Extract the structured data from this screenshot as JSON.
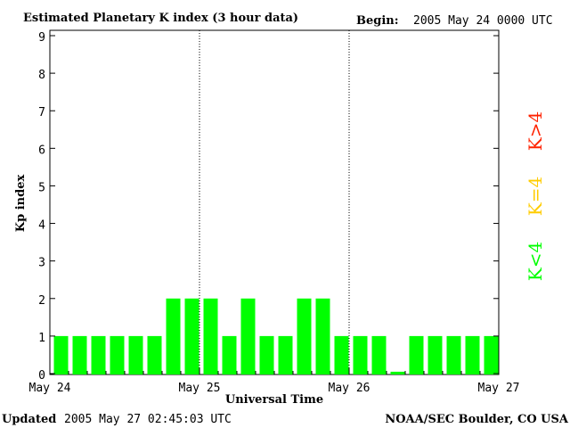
{
  "header": {
    "title": "Estimated Planetary K index (3 hour data)",
    "begin_label": "Begin:",
    "begin_value": "2005 May 24 0000 UTC"
  },
  "footer": {
    "updated_label": "Updated",
    "updated_value": "2005 May 27 02:45:03 UTC",
    "source": "NOAA/SEC Boulder, CO USA"
  },
  "legend": {
    "high": "K>4",
    "equal": "K=4",
    "low": "K<4"
  },
  "colors": {
    "low": "#00ff00",
    "equal": "#ffcc00",
    "high": "#ff2200",
    "axis": "#000000"
  },
  "chart_data": {
    "type": "bar",
    "title": "Estimated Planetary K index (3 hour data)",
    "xlabel": "Universal Time",
    "ylabel": "Kp index",
    "ylim": [
      0,
      9
    ],
    "yticks": [
      "0",
      "1",
      "2",
      "3",
      "4",
      "5",
      "6",
      "7",
      "8",
      "9"
    ],
    "day_labels": [
      "May 24",
      "May 25",
      "May 26",
      "May 27"
    ],
    "day_separators": "dotted",
    "values": [
      1,
      1,
      1,
      1,
      1,
      1,
      2,
      2,
      2,
      1,
      2,
      1,
      1,
      2,
      2,
      1,
      1,
      1,
      0.05,
      1,
      1,
      1,
      1,
      1
    ]
  }
}
